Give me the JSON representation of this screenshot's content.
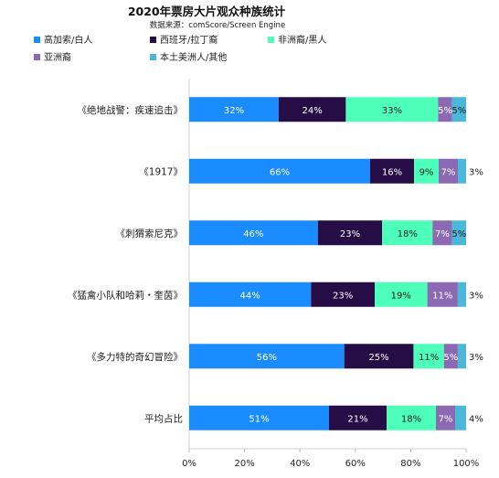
{
  "chart_data": {
    "type": "bar",
    "orientation": "horizontal",
    "stacked": true,
    "title": "2020年票房大片观众种族统计",
    "subtitle": "数据来源：comScore/Screen Engine",
    "categories": [
      "《绝地战警：疾速追击》",
      "《1917》",
      "《刺猬索尼克》",
      "《猛禽小队和哈莉・奎茵》",
      "《多力特的奇幻冒险》",
      "平均占比"
    ],
    "series": [
      {
        "name": "高加索/白人",
        "color": "#1a8cff",
        "values": [
          32,
          66,
          46,
          44,
          56,
          51
        ],
        "labels": [
          "32%",
          "66%",
          "46%",
          "44%",
          "56%",
          "51%"
        ]
      },
      {
        "name": "西班牙/拉丁裔",
        "color": "#260d45",
        "values": [
          24,
          16,
          23,
          23,
          25,
          21
        ],
        "labels": [
          "24%",
          "16%",
          "23%",
          "23%",
          "25%",
          "21%"
        ]
      },
      {
        "name": "非洲裔/黑人",
        "color": "#4dffb8",
        "values": [
          33,
          9,
          18,
          19,
          11,
          18
        ],
        "labels": [
          "33%",
          "9%",
          "18%",
          "19%",
          "11%",
          "18%"
        ]
      },
      {
        "name": "亚洲裔",
        "color": "#8b69b3",
        "values": [
          5,
          7,
          7,
          11,
          5,
          7
        ],
        "labels": [
          "5%",
          "7%",
          "7%",
          "11%",
          "5%",
          "7%"
        ]
      },
      {
        "name": "本土美洲人/其他",
        "color": "#4ab8d8",
        "values": [
          5,
          3,
          5,
          3,
          3,
          4
        ],
        "labels": [
          "5%",
          "3%",
          "5%",
          "3%",
          "3%",
          "4%"
        ]
      }
    ],
    "xlim": [
      0,
      100
    ],
    "xticks": [
      "0%",
      "20%",
      "40%",
      "60%",
      "80%",
      "100%"
    ],
    "legend_position": "top",
    "grid": false
  }
}
